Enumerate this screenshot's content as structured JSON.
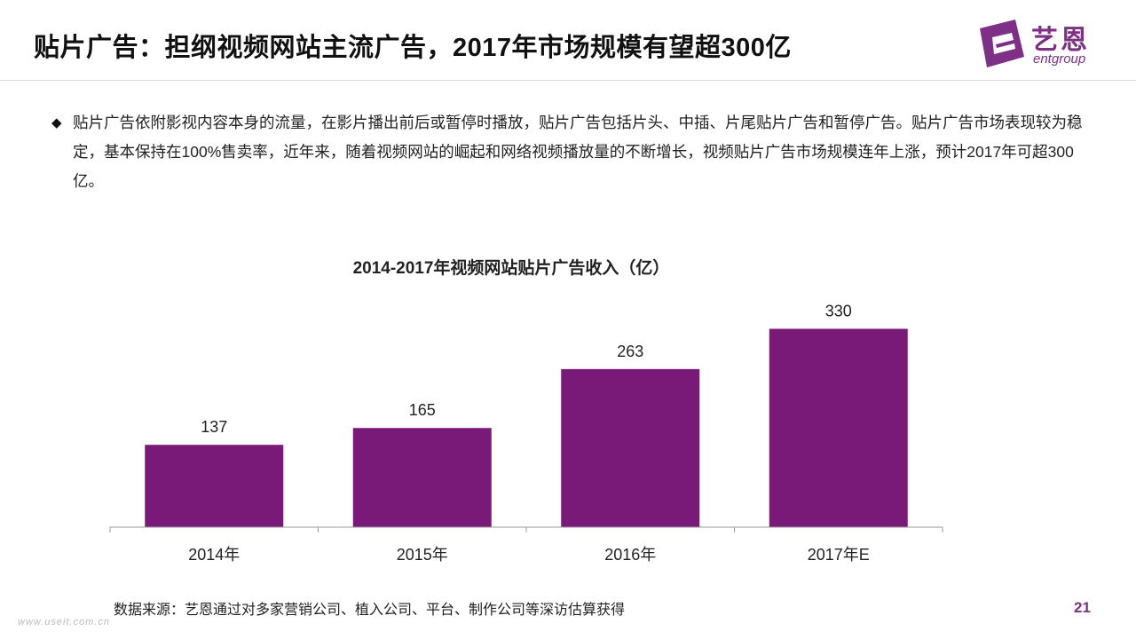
{
  "header": {
    "title": "贴片广告：担纲视频网站主流广告，2017年市场规模有望超300亿"
  },
  "logo": {
    "cn_text": "艺恩",
    "en_text": "entgroup",
    "brand_color": "#7e2f86"
  },
  "bullet": {
    "icon": "diamond-icon",
    "symbol": "◆",
    "text": "贴片广告依附影视内容本身的流量，在影片播出前后或暂停时播放，贴片广告包括片头、中插、片尾贴片广告和暂停广告。贴片广告市场表现较为稳定，基本保持在100%售卖率，近年来，随着视频网站的崛起和网络视频播放量的不断增长，视频贴片广告市场规模连年上涨，预计2017年可超300亿。"
  },
  "chart_data": {
    "type": "bar",
    "title": "2014-2017年视频网站贴片广告收入（亿）",
    "categories": [
      "2014年",
      "2015年",
      "2016年",
      "2017年E"
    ],
    "values": [
      137,
      165,
      263,
      330
    ],
    "data_labels": [
      "137",
      "165",
      "263",
      "330"
    ],
    "xlabel": "",
    "ylabel": "",
    "ylim": [
      0,
      375
    ],
    "grid": false,
    "bar_color": "#7a1a78"
  },
  "footer": {
    "source": "数据来源：艺恩通过对多家营销公司、植入公司、平台、制作公司等深访估算获得",
    "watermark": "www.useit.com.cn",
    "page_number": "21"
  }
}
